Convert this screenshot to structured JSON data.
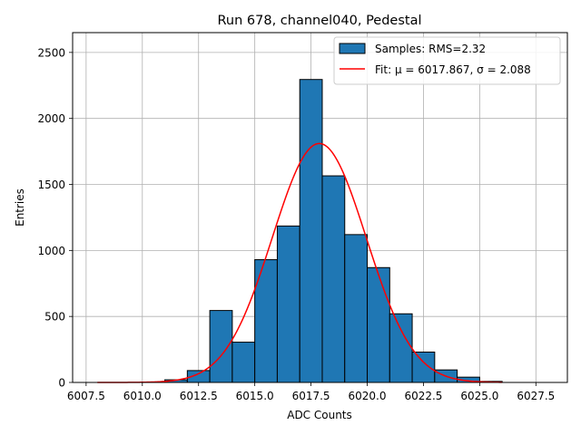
{
  "chart_data": {
    "type": "bar",
    "title": "Run 678, channel040, Pedestal",
    "xlabel": "ADC Counts",
    "ylabel": "Entries",
    "xlim": [
      6006.9,
      6028.9
    ],
    "ylim": [
      0,
      2650
    ],
    "grid": true,
    "legend_position": "top-right",
    "xticks": [
      6007.5,
      6010.0,
      6012.5,
      6015.0,
      6017.5,
      6020.0,
      6022.5,
      6025.0,
      6027.5
    ],
    "xtick_labels": [
      "6007.5",
      "6010.0",
      "6012.5",
      "6015.0",
      "6017.5",
      "6020.0",
      "6022.5",
      "6025.0",
      "6027.5"
    ],
    "yticks": [
      0,
      500,
      1000,
      1500,
      2000,
      2500
    ],
    "ytick_labels": [
      "0",
      "500",
      "1000",
      "1500",
      "2000",
      "2500"
    ],
    "bins": [
      {
        "x0": 6008,
        "x1": 6009,
        "count": 0
      },
      {
        "x0": 6009,
        "x1": 6010,
        "count": 0
      },
      {
        "x0": 6010,
        "x1": 6011,
        "count": 0
      },
      {
        "x0": 6011,
        "x1": 6012,
        "count": 20
      },
      {
        "x0": 6012,
        "x1": 6013,
        "count": 90
      },
      {
        "x0": 6013,
        "x1": 6014,
        "count": 545
      },
      {
        "x0": 6014,
        "x1": 6015,
        "count": 305
      },
      {
        "x0": 6015,
        "x1": 6016,
        "count": 930
      },
      {
        "x0": 6016,
        "x1": 6017,
        "count": 1185
      },
      {
        "x0": 6017,
        "x1": 6018,
        "count": 2295
      },
      {
        "x0": 6018,
        "x1": 6019,
        "count": 1565
      },
      {
        "x0": 6019,
        "x1": 6020,
        "count": 1120
      },
      {
        "x0": 6020,
        "x1": 6021,
        "count": 870
      },
      {
        "x0": 6021,
        "x1": 6022,
        "count": 520
      },
      {
        "x0": 6022,
        "x1": 6023,
        "count": 230
      },
      {
        "x0": 6023,
        "x1": 6024,
        "count": 95
      },
      {
        "x0": 6024,
        "x1": 6025,
        "count": 40
      },
      {
        "x0": 6025,
        "x1": 6026,
        "count": 8
      }
    ],
    "fit": {
      "mu": 6017.867,
      "sigma": 2.088,
      "amplitude": 1810,
      "x_range": [
        6008,
        6026
      ]
    },
    "series": [
      {
        "name": "Samples: RMS=2.32",
        "kind": "histogram",
        "color": "#1f77b4",
        "edgecolor": "#000000"
      },
      {
        "name": "Fit:",
        "kind": "line",
        "color": "#ff0000"
      }
    ],
    "legend_fit_mu_label": "μ = 6017.867",
    "legend_fit_sigma_label": "σ = 2.088"
  }
}
